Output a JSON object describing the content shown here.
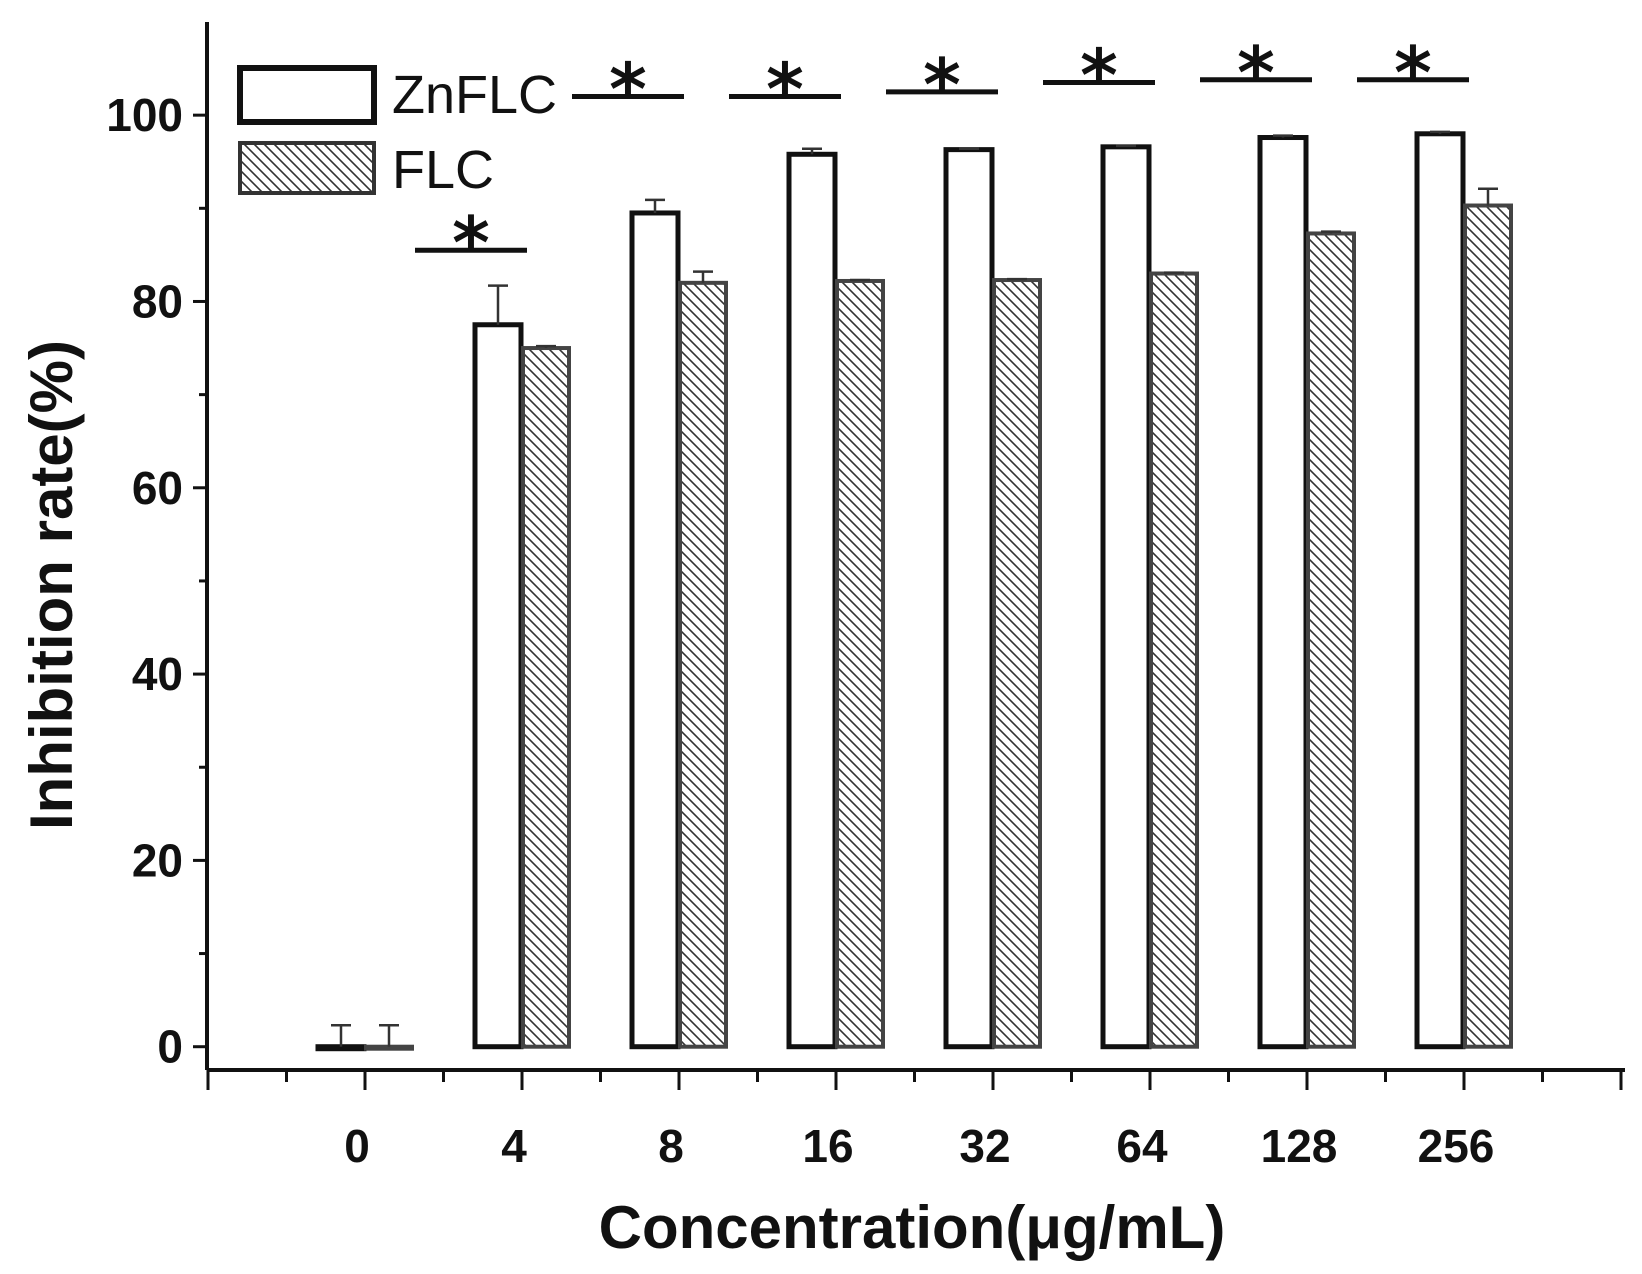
{
  "chart_data": {
    "type": "bar",
    "xlabel": "Concentration(μg/mL)",
    "ylabel": "Inhibition rate(%)",
    "ylim": [
      -2.5,
      110
    ],
    "yticks": [
      0,
      20,
      40,
      60,
      80,
      100
    ],
    "categories": [
      "0",
      "4",
      "8",
      "16",
      "32",
      "64",
      "128",
      "256"
    ],
    "series": [
      {
        "name": "ZnFLC",
        "values": [
          0,
          77.5,
          89.5,
          95.8,
          96.3,
          96.6,
          97.6,
          98.0
        ],
        "errors": [
          2.3,
          4.2,
          1.4,
          0.6,
          0.1,
          0.1,
          0.2,
          0.2
        ],
        "fill": "#ffffff"
      },
      {
        "name": "FLC",
        "values": [
          0,
          75.0,
          82.0,
          82.2,
          82.3,
          83.0,
          87.3,
          90.3
        ],
        "errors": [
          2.3,
          0.2,
          1.2,
          0.1,
          0.1,
          0.1,
          0.2,
          1.8
        ],
        "fill": "hatch"
      }
    ],
    "significance": {
      "symbol": "*",
      "categories": [
        "4",
        "8",
        "16",
        "32",
        "64",
        "128",
        "256"
      ],
      "levels": [
        85.5,
        102.0,
        102.0,
        102.5,
        103.5,
        103.8,
        103.8
      ]
    },
    "legend": "top-left",
    "grid": false
  },
  "colors": {
    "axis": "#111111",
    "bar_edge": "#222222",
    "hatch": "#333333"
  }
}
